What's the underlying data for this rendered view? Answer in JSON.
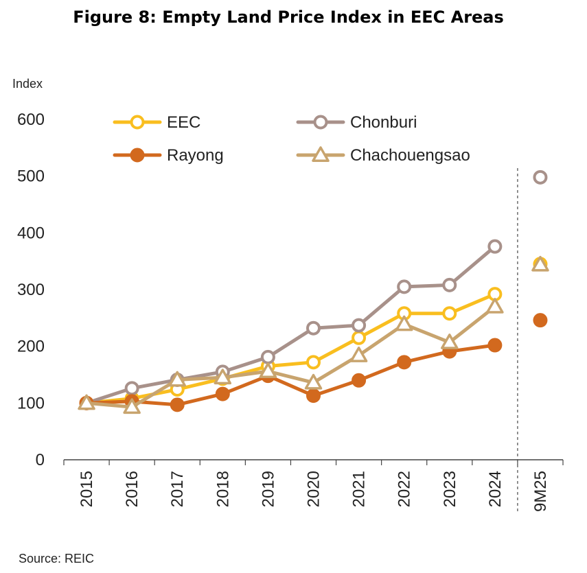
{
  "chart_data": {
    "type": "line",
    "title": "Figure 8: Empty Land Price Index in EEC Areas",
    "ylabel": "Index",
    "source": "Source: REIC",
    "ylim": [
      0,
      600
    ],
    "yticks": [
      0,
      100,
      200,
      300,
      400,
      500,
      600
    ],
    "categories": [
      "2015",
      "2016",
      "2017",
      "2018",
      "2019",
      "2020",
      "2021",
      "2022",
      "2023",
      "2024",
      "9M25"
    ],
    "separator_after": "2024",
    "grid": false,
    "legend_position": "top-left",
    "series": [
      {
        "name": "EEC",
        "color": "#F9BE1F",
        "marker": "open-circle",
        "values": [
          100,
          108,
          124,
          143,
          165,
          172,
          215,
          258,
          258,
          292,
          345
        ]
      },
      {
        "name": "Chonburi",
        "color": "#A8918A",
        "marker": "open-circle",
        "values": [
          100,
          126,
          141,
          155,
          181,
          232,
          237,
          305,
          308,
          376,
          498
        ]
      },
      {
        "name": "Rayong",
        "color": "#D2691E",
        "marker": "filled-circle",
        "values": [
          100,
          103,
          97,
          116,
          148,
          113,
          140,
          172,
          191,
          202,
          246
        ]
      },
      {
        "name": "Chachouengsao",
        "color": "#C8A46E",
        "marker": "open-triangle",
        "values": [
          100,
          93,
          141,
          145,
          156,
          136,
          184,
          239,
          207,
          270,
          344
        ]
      }
    ]
  }
}
